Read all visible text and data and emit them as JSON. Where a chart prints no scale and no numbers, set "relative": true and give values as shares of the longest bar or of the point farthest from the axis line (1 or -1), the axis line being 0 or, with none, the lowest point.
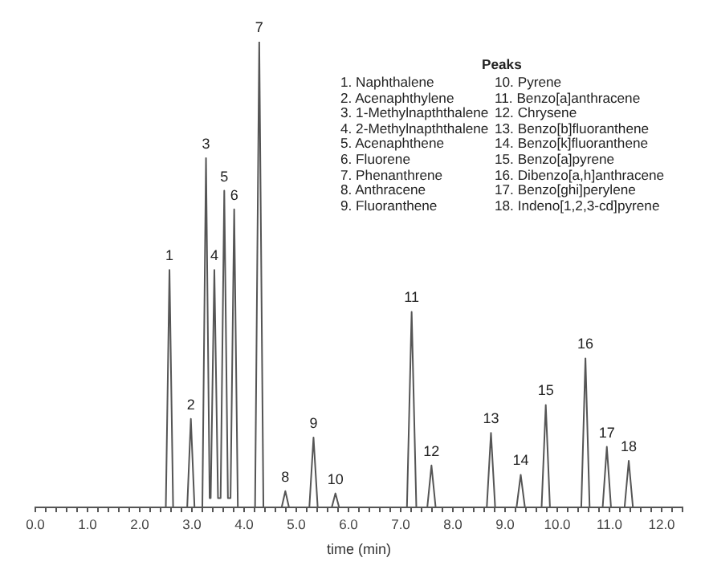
{
  "chart_data": {
    "type": "line",
    "relative": true,
    "xlabel": "time (min)",
    "xlim": [
      0,
      12.4
    ],
    "xticks": [
      {
        "value": 0,
        "label": "0.0"
      },
      {
        "value": 0.2,
        "label": null
      },
      {
        "value": 0.4,
        "label": null
      },
      {
        "value": 0.6,
        "label": null
      },
      {
        "value": 0.8,
        "label": null
      },
      {
        "value": 1,
        "label": "1.0"
      },
      {
        "value": 1.2,
        "label": null
      },
      {
        "value": 1.4,
        "label": null
      },
      {
        "value": 1.6,
        "label": null
      },
      {
        "value": 1.8,
        "label": null
      },
      {
        "value": 2,
        "label": "2.0"
      },
      {
        "value": 2.2,
        "label": null
      },
      {
        "value": 2.4,
        "label": null
      },
      {
        "value": 2.6,
        "label": null
      },
      {
        "value": 2.8,
        "label": null
      },
      {
        "value": 3,
        "label": "3.0"
      },
      {
        "value": 3.2,
        "label": null
      },
      {
        "value": 3.4,
        "label": null
      },
      {
        "value": 3.6,
        "label": null
      },
      {
        "value": 3.8,
        "label": null
      },
      {
        "value": 4,
        "label": "4.0"
      },
      {
        "value": 4.2,
        "label": null
      },
      {
        "value": 4.4,
        "label": null
      },
      {
        "value": 4.6,
        "label": null
      },
      {
        "value": 4.8,
        "label": null
      },
      {
        "value": 5,
        "label": "5.0"
      },
      {
        "value": 5.2,
        "label": null
      },
      {
        "value": 5.4,
        "label": null
      },
      {
        "value": 5.6,
        "label": null
      },
      {
        "value": 5.8,
        "label": null
      },
      {
        "value": 6,
        "label": "6.0"
      },
      {
        "value": 6.2,
        "label": null
      },
      {
        "value": 6.4,
        "label": null
      },
      {
        "value": 6.6,
        "label": null
      },
      {
        "value": 6.8,
        "label": null
      },
      {
        "value": 7,
        "label": "7.0"
      },
      {
        "value": 7.2,
        "label": null
      },
      {
        "value": 7.4,
        "label": null
      },
      {
        "value": 7.6,
        "label": null
      },
      {
        "value": 7.8,
        "label": null
      },
      {
        "value": 8,
        "label": "8.0"
      },
      {
        "value": 8.2,
        "label": null
      },
      {
        "value": 8.4,
        "label": null
      },
      {
        "value": 8.6,
        "label": null
      },
      {
        "value": 8.8,
        "label": null
      },
      {
        "value": 9,
        "label": "9.0"
      },
      {
        "value": 9.2,
        "label": null
      },
      {
        "value": 9.4,
        "label": null
      },
      {
        "value": 9.6,
        "label": null
      },
      {
        "value": 9.8,
        "label": null
      },
      {
        "value": 10,
        "label": "10.0"
      },
      {
        "value": 10.2,
        "label": null
      },
      {
        "value": 10.4,
        "label": null
      },
      {
        "value": 10.6,
        "label": null
      },
      {
        "value": 10.8,
        "label": null
      },
      {
        "value": 11,
        "label": "11.0"
      },
      {
        "value": 11.2,
        "label": null
      },
      {
        "value": 11.4,
        "label": null
      },
      {
        "value": 11.6,
        "label": null
      },
      {
        "value": 11.8,
        "label": null
      },
      {
        "value": 12,
        "label": "12.0"
      },
      {
        "value": 12.2,
        "label": null
      },
      {
        "value": 12.4,
        "label": null
      }
    ],
    "x": [
      0,
      2.5,
      2.57,
      2.64,
      2.91,
      2.98,
      3.05,
      3.2,
      3.27,
      3.34,
      3.36,
      3.43,
      3.5,
      3.55,
      3.62,
      3.69,
      3.74,
      3.81,
      3.88,
      4.21,
      4.29,
      4.37,
      4.72,
      4.79,
      4.86,
      5.25,
      5.33,
      5.41,
      5.68,
      5.75,
      5.82,
      7.12,
      7.21,
      7.3,
      7.51,
      7.59,
      7.67,
      8.65,
      8.73,
      8.81,
      9.22,
      9.3,
      9.38,
      9.7,
      9.78,
      9.86,
      10.46,
      10.54,
      10.62,
      10.87,
      10.95,
      11.03,
      11.29,
      11.37,
      11.45,
      12.35
    ],
    "series": [
      {
        "color": "#555555",
        "values": [
          0,
          0,
          0.51,
          0,
          0,
          0.19,
          0,
          0,
          0.75,
          0.02,
          0.02,
          0.51,
          0.02,
          0.02,
          0.68,
          0.02,
          0.02,
          0.64,
          0,
          0,
          1,
          0,
          0,
          0.035,
          0,
          0,
          0.15,
          0,
          0,
          0.03,
          0,
          0,
          0.42,
          0,
          0,
          0.09,
          0,
          0,
          0.16,
          0,
          0,
          0.07,
          0,
          0,
          0.22,
          0,
          0,
          0.32,
          0,
          0,
          0.13,
          0,
          0,
          0.1,
          0,
          0
        ]
      }
    ],
    "annotations": [
      {
        "text": "1",
        "x": 2.57,
        "y": 0.51
      },
      {
        "text": "2",
        "x": 2.98,
        "y": 0.19
      },
      {
        "text": "3",
        "x": 3.27,
        "y": 0.75
      },
      {
        "text": "4",
        "x": 3.43,
        "y": 0.51
      },
      {
        "text": "5",
        "x": 3.62,
        "y": 0.68
      },
      {
        "text": "6",
        "x": 3.81,
        "y": 0.64
      },
      {
        "text": "7",
        "x": 4.29,
        "y": 1
      },
      {
        "text": "8",
        "x": 4.79,
        "y": 0.035
      },
      {
        "text": "9",
        "x": 5.33,
        "y": 0.15
      },
      {
        "text": "10",
        "x": 5.75,
        "y": 0.03
      },
      {
        "text": "11",
        "x": 7.21,
        "y": 0.42
      },
      {
        "text": "12",
        "x": 7.59,
        "y": 0.09
      },
      {
        "text": "13",
        "x": 8.73,
        "y": 0.16
      },
      {
        "text": "14",
        "x": 9.3,
        "y": 0.07
      },
      {
        "text": "15",
        "x": 9.78,
        "y": 0.22
      },
      {
        "text": "16",
        "x": 10.54,
        "y": 0.32
      },
      {
        "text": "17",
        "x": 10.95,
        "y": 0.13
      },
      {
        "text": "18",
        "x": 11.37,
        "y": 0.1
      },
      "Peaks",
      "1. Naphthalene",
      "2. Acenaphthylene",
      "3. 1-Methylnapththalene",
      "4. 2-Methylnapththalene",
      "5. Acenaphthene",
      "6. Fluorene",
      "7. Phenanthrene",
      "8. Anthracene",
      "9. Fluoranthene",
      "10. Pyrene",
      "11. Benzo[a]anthracene",
      "12. Chrysene",
      "13. Benzo[b]fluoranthene",
      "14. Benzo[k]fluoranthene",
      "15. Benzo[a]pyrene",
      "16. Dibenzo[a,h]anthracene",
      "17. Benzo[ghi]perylene",
      "18. Indeno[1,2,3-cd]pyrene"
    ]
  }
}
